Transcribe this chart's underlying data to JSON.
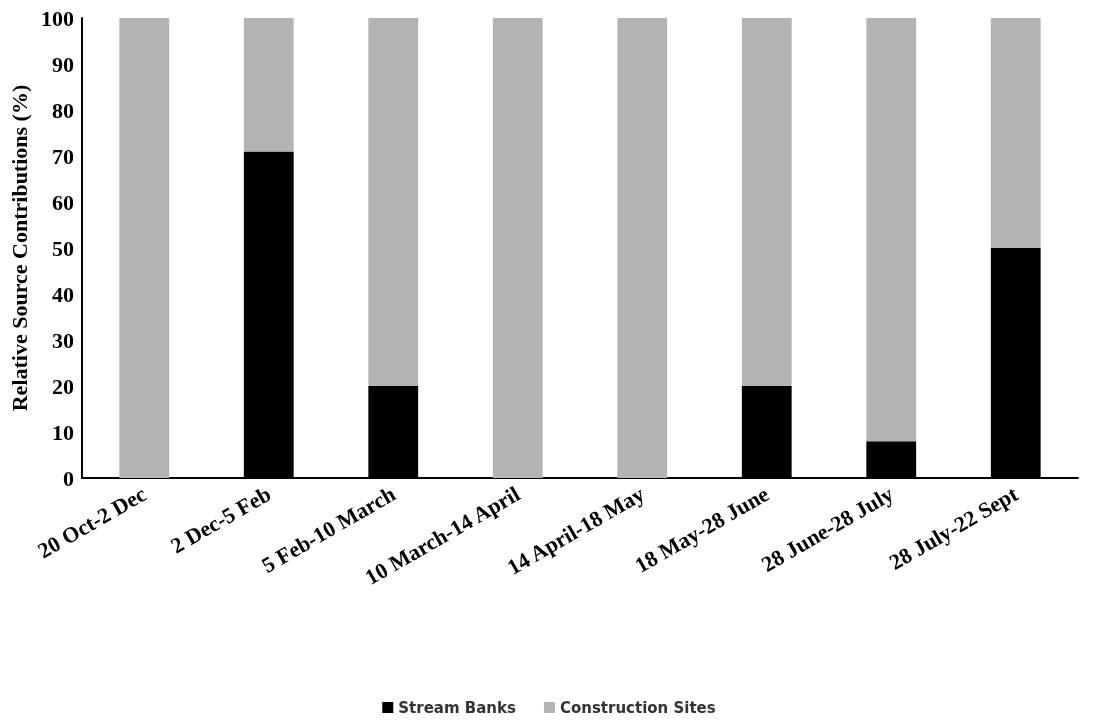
{
  "chart_data": {
    "type": "bar",
    "stacked": true,
    "ylabel": "Relative Source Contributions (%)",
    "categories": [
      "20 Oct-2 Dec",
      "2 Dec-5 Feb",
      "5 Feb-10 March",
      "10 March-14 April",
      "14 April-18 May",
      "18 May-28 June",
      "28 June-28 July",
      "28 July-22 Sept"
    ],
    "series": [
      {
        "name": "Stream Banks",
        "color": "#000000",
        "values": [
          0,
          71,
          20,
          0,
          0,
          20,
          8,
          50
        ]
      },
      {
        "name": "Construction Sites",
        "color": "#b3b3b3",
        "values": [
          100,
          29,
          80,
          100,
          100,
          80,
          92,
          50
        ]
      }
    ],
    "ylim": [
      0,
      100
    ],
    "yticks": [
      0,
      10,
      20,
      30,
      40,
      50,
      60,
      70,
      80,
      90,
      100
    ],
    "grid": false,
    "legend": "bottom"
  }
}
